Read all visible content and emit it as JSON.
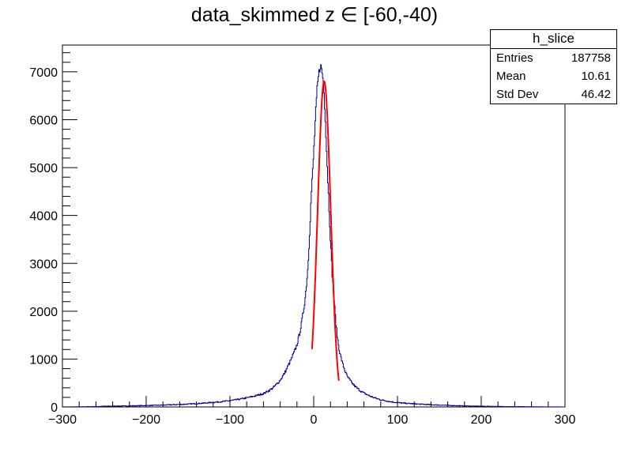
{
  "chart_data": {
    "type": "histogram",
    "title": "data_skimmed z  ∈ [-60,-40)",
    "xlabel": "",
    "ylabel": "",
    "xlim": [
      -300,
      300
    ],
    "ylim": [
      0,
      7560
    ],
    "x_ticks": [
      "−300",
      "−200",
      "−100",
      "0",
      "100",
      "200",
      "300"
    ],
    "y_ticks": [
      "0",
      "1000",
      "2000",
      "3000",
      "4000",
      "5000",
      "6000",
      "7000"
    ],
    "grid": false,
    "legend": "none",
    "series": [
      {
        "kind": "histogram",
        "color": "#000099",
        "x": [
          -300,
          -250,
          -200,
          -150,
          -100,
          -80,
          -60,
          -50,
          -40,
          -30,
          -20,
          -15,
          -10,
          -7,
          -5,
          -3,
          0,
          2,
          4,
          6,
          8,
          10,
          12,
          14,
          16,
          18,
          20,
          22,
          25,
          28,
          31,
          35,
          40,
          50,
          60,
          80,
          100,
          150,
          200,
          250,
          300
        ],
        "y": [
          0,
          15,
          30,
          60,
          130,
          190,
          280,
          380,
          560,
          880,
          1300,
          1700,
          2300,
          2900,
          3600,
          4400,
          5300,
          6000,
          6600,
          6950,
          7150,
          7000,
          6700,
          6000,
          5100,
          4300,
          3500,
          2800,
          2100,
          1500,
          1150,
          880,
          640,
          420,
          290,
          150,
          90,
          40,
          15,
          5,
          0
        ]
      },
      {
        "kind": "fit",
        "color": "#ff0000",
        "x_range": [
          -2,
          30
        ],
        "mean": 12.5,
        "sigma": 7.8,
        "amplitude": 6800
      }
    ]
  },
  "stats_box": {
    "name": "h_slice",
    "rows": [
      {
        "label": "Entries",
        "value": "187758"
      },
      {
        "label": "Mean",
        "value": "10.61"
      },
      {
        "label": "Std Dev",
        "value": "46.42"
      }
    ]
  }
}
